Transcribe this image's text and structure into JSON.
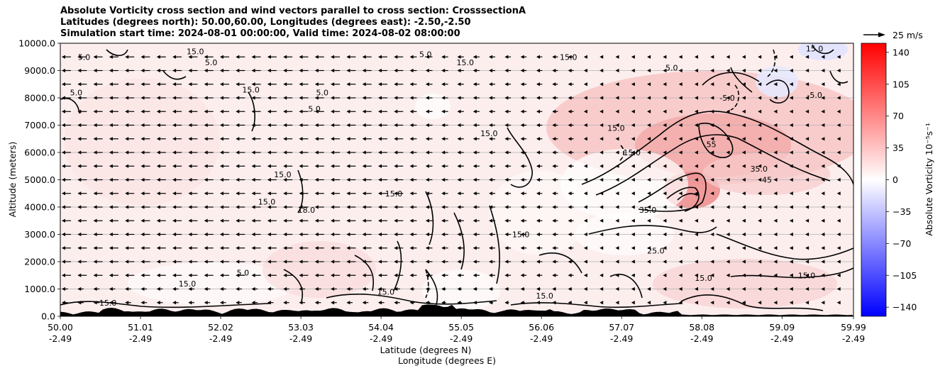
{
  "title_lines": [
    "Absolute Vorticity cross section and wind vectors parallel to cross section: CrosssectionA",
    "Latitudes (degrees north): 50.00,60.00, Longitudes (degrees east): -2.50,-2.50",
    "Simulation start time: 2024-08-01 00:00:00, Valid time: 2024-08-02 08:00:00"
  ],
  "quiver_key": {
    "label": "25 m/s"
  },
  "chart_data": {
    "type": "heatmap",
    "ylabel": "Altitude (meters)",
    "xlabel_lines": [
      "Latitude (degrees N)",
      "Longitude (degrees E)"
    ],
    "ylim": [
      0,
      10000
    ],
    "xlim": [
      50.0,
      59.99
    ],
    "y_ticks": [
      "0.0",
      "1000.0",
      "2000.0",
      "3000.0",
      "4000.0",
      "5000.0",
      "6000.0",
      "7000.0",
      "8000.0",
      "9000.0",
      "10000.0"
    ],
    "x_ticks": [
      {
        "lat": "50.00",
        "lon": "-2.49"
      },
      {
        "lat": "51.01",
        "lon": "-2.49"
      },
      {
        "lat": "52.02",
        "lon": "-2.49"
      },
      {
        "lat": "53.03",
        "lon": "-2.49"
      },
      {
        "lat": "54.04",
        "lon": "-2.49"
      },
      {
        "lat": "55.05",
        "lon": "-2.49"
      },
      {
        "lat": "56.06",
        "lon": "-2.49"
      },
      {
        "lat": "57.07",
        "lon": "-2.49"
      },
      {
        "lat": "58.08",
        "lon": "-2.49"
      },
      {
        "lat": "59.09",
        "lon": "-2.49"
      },
      {
        "lat": "59.99",
        "lon": "-2.49"
      }
    ],
    "grid": "horizontal",
    "colorbar": {
      "label": "Absolute Vorticity 10⁻⁵s⁻¹",
      "range": [
        -150,
        150
      ],
      "ticks": [
        "140",
        "105",
        "70",
        "35",
        "0",
        "−35",
        "−70",
        "−105",
        "−140"
      ],
      "tick_values": [
        140,
        105,
        70,
        35,
        0,
        -35,
        -70,
        -105,
        -140
      ],
      "colormap": "bwr"
    },
    "contour_labels": [
      {
        "text": "5.0",
        "lat": 50.3,
        "z": 9500
      },
      {
        "text": "15.0",
        "lat": 51.7,
        "z": 9700
      },
      {
        "text": "5.0",
        "lat": 51.9,
        "z": 9300
      },
      {
        "text": "15.0",
        "lat": 52.4,
        "z": 8300
      },
      {
        "text": "5.0",
        "lat": 50.2,
        "z": 8200
      },
      {
        "text": "5.0",
        "lat": 53.3,
        "z": 8200
      },
      {
        "text": "5.0",
        "lat": 53.2,
        "z": 7600
      },
      {
        "text": "15.0",
        "lat": 52.8,
        "z": 5200
      },
      {
        "text": "15.0",
        "lat": 52.6,
        "z": 4200
      },
      {
        "text": "18.0",
        "lat": 53.1,
        "z": 3900
      },
      {
        "text": "15.0",
        "lat": 54.2,
        "z": 4500
      },
      {
        "text": "15.0",
        "lat": 55.1,
        "z": 9300
      },
      {
        "text": "5.0",
        "lat": 54.6,
        "z": 9600
      },
      {
        "text": "15.0",
        "lat": 55.8,
        "z": 3000
      },
      {
        "text": "15.0",
        "lat": 55.4,
        "z": 6700
      },
      {
        "text": "15.0",
        "lat": 57.0,
        "z": 6900
      },
      {
        "text": "15.0",
        "lat": 56.4,
        "z": 9500
      },
      {
        "text": "15.0",
        "lat": 57.2,
        "z": 6000
      },
      {
        "text": "25.0",
        "lat": 57.5,
        "z": 2400
      },
      {
        "text": "35.0",
        "lat": 57.4,
        "z": 3900
      },
      {
        "text": "55",
        "lat": 58.2,
        "z": 6300
      },
      {
        "text": "35.0",
        "lat": 58.8,
        "z": 5400
      },
      {
        "text": "45",
        "lat": 58.9,
        "z": 5000
      },
      {
        "text": "15.0",
        "lat": 59.4,
        "z": 1500
      },
      {
        "text": "15.0",
        "lat": 58.1,
        "z": 1400
      },
      {
        "text": "5.0",
        "lat": 52.3,
        "z": 1600
      },
      {
        "text": "15.0",
        "lat": 51.6,
        "z": 1200
      },
      {
        "text": "15.0",
        "lat": 54.1,
        "z": 900
      },
      {
        "text": "15.0",
        "lat": 56.1,
        "z": 750
      },
      {
        "text": "15.0",
        "lat": 50.6,
        "z": 500
      },
      {
        "text": "-5.0",
        "lat": 59.5,
        "z": 8100
      },
      {
        "text": "-5.0",
        "lat": 58.4,
        "z": 8000
      },
      {
        "text": "5.0",
        "lat": 57.7,
        "z": 9100
      },
      {
        "text": "15.0",
        "lat": 59.5,
        "z": 9800
      }
    ]
  }
}
